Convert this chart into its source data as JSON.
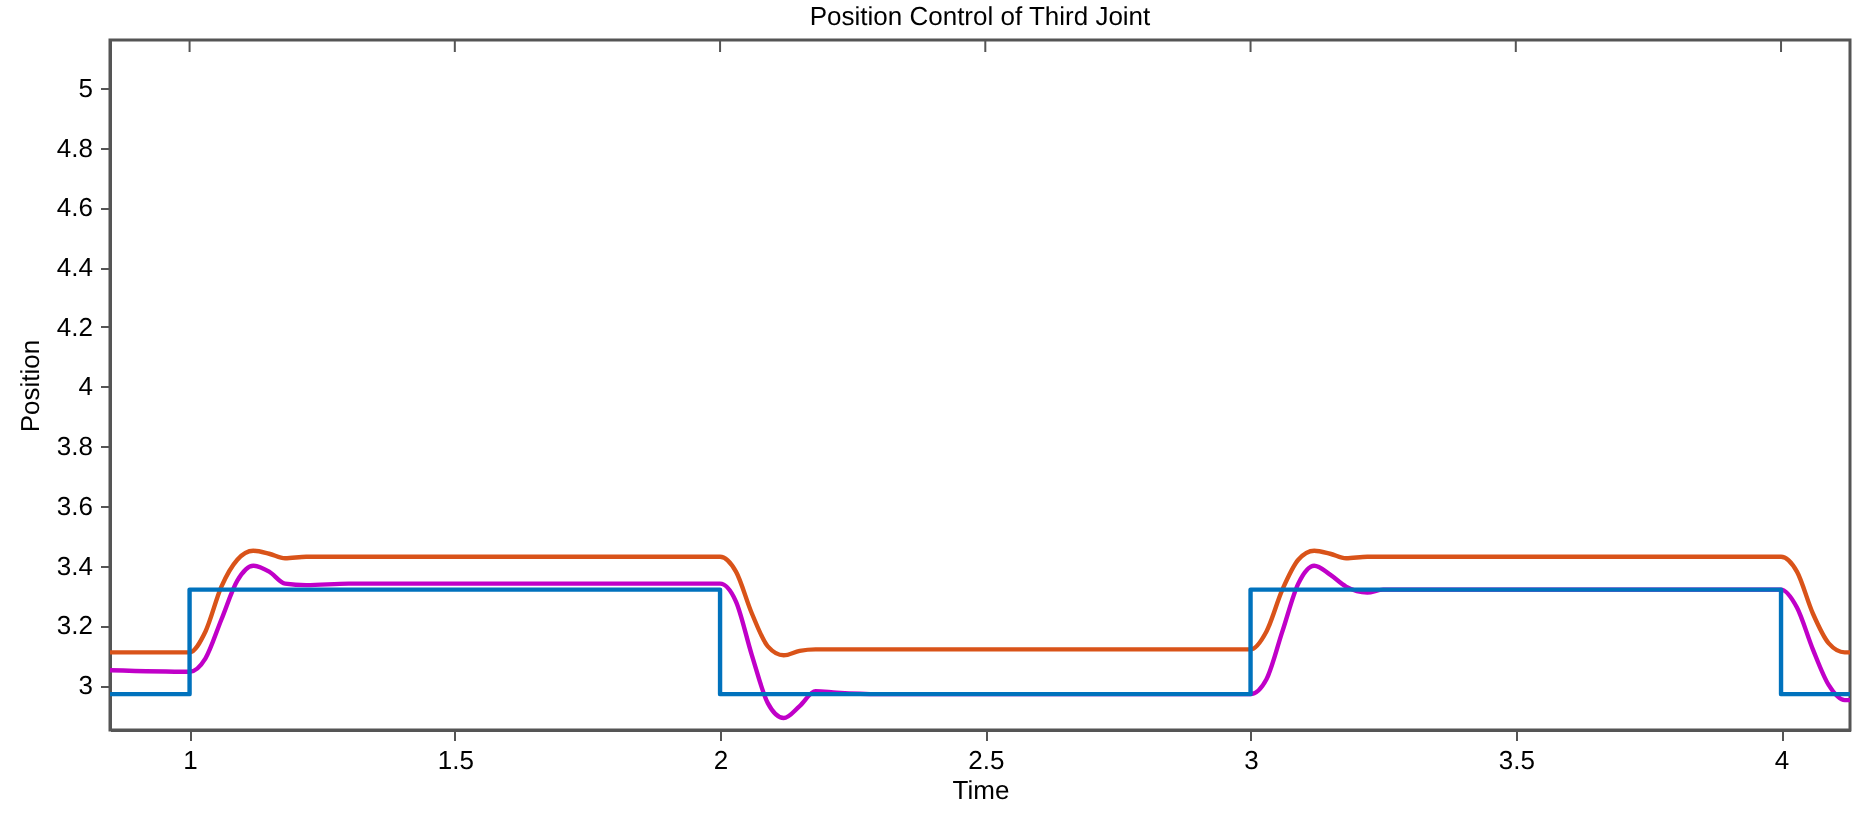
{
  "chart_data": {
    "type": "line",
    "title": "Position Control of Third Joint",
    "xlabel": "Time",
    "ylabel": "Position",
    "xlim": [
      0.85,
      4.13
    ],
    "ylim": [
      2.85,
      5.16
    ],
    "xticks": [
      1,
      1.5,
      2,
      2.5,
      3,
      3.5,
      4
    ],
    "yticks": [
      3,
      3.2,
      3.4,
      3.6,
      3.8,
      4,
      4.2,
      4.4,
      4.6,
      4.8,
      5
    ],
    "grid": false,
    "line_style": "solid",
    "marker": "none",
    "series": [
      {
        "color": "#c000c8",
        "x": [
          0.85,
          1.0,
          1.03,
          1.06,
          1.09,
          1.12,
          1.15,
          1.18,
          1.22,
          1.3,
          2.0,
          2.03,
          2.06,
          2.09,
          2.12,
          2.15,
          2.18,
          2.22,
          2.3,
          3.0,
          3.03,
          3.06,
          3.09,
          3.12,
          3.15,
          3.18,
          3.22,
          3.25,
          4.0,
          4.03,
          4.06,
          4.09,
          4.12,
          4.13
        ],
        "values": [
          3.05,
          3.045,
          3.09,
          3.22,
          3.35,
          3.4,
          3.38,
          3.34,
          3.335,
          3.34,
          3.34,
          3.28,
          3.1,
          2.94,
          2.89,
          2.93,
          2.98,
          2.975,
          2.97,
          2.97,
          3.02,
          3.18,
          3.34,
          3.4,
          3.37,
          3.33,
          3.31,
          3.32,
          3.32,
          3.26,
          3.12,
          3.0,
          2.95,
          2.95
        ]
      },
      {
        "color": "#d95319",
        "x": [
          0.85,
          1.0,
          1.03,
          1.06,
          1.09,
          1.12,
          1.15,
          1.18,
          1.22,
          1.3,
          2.0,
          2.03,
          2.06,
          2.09,
          2.12,
          2.15,
          2.18,
          2.22,
          2.3,
          3.0,
          3.03,
          3.06,
          3.09,
          3.12,
          3.15,
          3.18,
          3.22,
          3.3,
          4.0,
          4.03,
          4.06,
          4.09,
          4.12,
          4.13
        ],
        "values": [
          3.11,
          3.11,
          3.18,
          3.33,
          3.42,
          3.45,
          3.44,
          3.425,
          3.43,
          3.43,
          3.43,
          3.38,
          3.24,
          3.13,
          3.1,
          3.115,
          3.12,
          3.12,
          3.12,
          3.12,
          3.18,
          3.32,
          3.42,
          3.45,
          3.44,
          3.425,
          3.43,
          3.43,
          3.43,
          3.38,
          3.24,
          3.14,
          3.11,
          3.11
        ]
      },
      {
        "type": "step",
        "color": "#0072bd",
        "x": [
          0.85,
          1.0,
          2.0,
          3.0,
          4.0,
          4.13
        ],
        "values": [
          2.97,
          3.32,
          2.97,
          3.32,
          2.97,
          2.97
        ]
      }
    ]
  }
}
